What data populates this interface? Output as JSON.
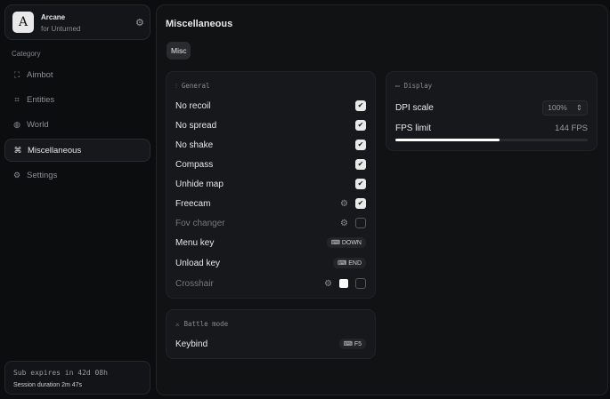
{
  "brand": {
    "name": "Arcane",
    "subtitle": "for Unturned",
    "logo_letter": "A"
  },
  "sidebar": {
    "category_label": "Category",
    "items": [
      {
        "label": "Aimbot",
        "icon": "crosshair-icon"
      },
      {
        "label": "Entities",
        "icon": "scan-icon"
      },
      {
        "label": "World",
        "icon": "globe-icon"
      },
      {
        "label": "Miscellaneous",
        "icon": "grid-icon",
        "active": true
      },
      {
        "label": "Settings",
        "icon": "gear-icon"
      }
    ]
  },
  "footer": {
    "sub": "Sub expires in 42d 08h",
    "session": "Session duration 2m 47s"
  },
  "main": {
    "title": "Miscellaneous",
    "tab": "Misc"
  },
  "general": {
    "title": "General",
    "rows": [
      {
        "label": "No recoil",
        "checked": true
      },
      {
        "label": "No spread",
        "checked": true
      },
      {
        "label": "No shake",
        "checked": true
      },
      {
        "label": "Compass",
        "checked": true
      },
      {
        "label": "Unhide map",
        "checked": true
      },
      {
        "label": "Freecam",
        "checked": true,
        "settings": true
      },
      {
        "label": "Fov changer",
        "checked": false,
        "settings": true
      },
      {
        "label": "Menu key",
        "key": "DOWN"
      },
      {
        "label": "Unload key",
        "key": "END"
      },
      {
        "label": "Crosshair",
        "checked": false,
        "settings": true,
        "color": "#ffffff"
      }
    ]
  },
  "display": {
    "title": "Display",
    "dpi_label": "DPI scale",
    "dpi_value": "100%",
    "fps_label": "FPS limit",
    "fps_value": "144 FPS",
    "fps_fraction": 0.54
  },
  "battle": {
    "title": "Battle mode",
    "keybind_label": "Keybind",
    "keybind_key": "F5"
  }
}
